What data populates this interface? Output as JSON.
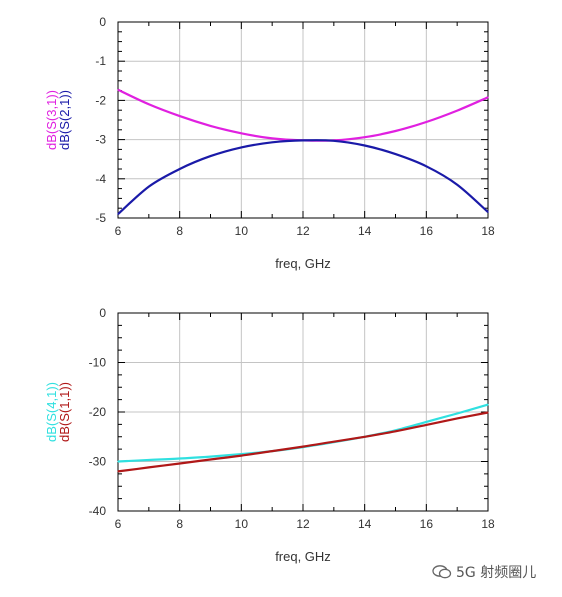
{
  "chart_data": [
    {
      "type": "line",
      "xlabel": "freq, GHz",
      "ylabel_lines": [
        "dB(S(3,1))",
        "dB(S(2,1))"
      ],
      "x": [
        6,
        7,
        8,
        9,
        10,
        11,
        12,
        13,
        14,
        15,
        16,
        17,
        18
      ],
      "xticks": [
        6,
        8,
        10,
        12,
        14,
        16,
        18
      ],
      "yticks": [
        0,
        -1,
        -2,
        -3,
        -4,
        -5
      ],
      "xlim": [
        6,
        18
      ],
      "ylim": [
        -5,
        0
      ],
      "grid": true,
      "series": [
        {
          "name": "dB(S(3,1))",
          "color": "#e020e0",
          "values": [
            -1.73,
            -2.1,
            -2.4,
            -2.65,
            -2.84,
            -2.97,
            -3.02,
            -3.02,
            -2.94,
            -2.78,
            -2.55,
            -2.26,
            -1.92
          ]
        },
        {
          "name": "dB(S(2,1))",
          "color": "#1a1aa8",
          "values": [
            -4.9,
            -4.2,
            -3.75,
            -3.42,
            -3.2,
            -3.07,
            -3.02,
            -3.03,
            -3.15,
            -3.37,
            -3.68,
            -4.15,
            -4.85
          ]
        }
      ]
    },
    {
      "type": "line",
      "xlabel": "freq, GHz",
      "ylabel_lines": [
        "dB(S(4,1))",
        "dB(S(1,1))"
      ],
      "x": [
        6,
        7,
        8,
        9,
        10,
        11,
        12,
        13,
        14,
        15,
        16,
        17,
        18
      ],
      "xticks": [
        6,
        8,
        10,
        12,
        14,
        16,
        18
      ],
      "yticks": [
        0,
        -10,
        -20,
        -30,
        -40
      ],
      "xlim": [
        6,
        18
      ],
      "ylim": [
        -40,
        0
      ],
      "grid": true,
      "series": [
        {
          "name": "dB(S(4,1))",
          "color": "#30e0e0",
          "values": [
            -30.0,
            -29.7,
            -29.4,
            -29.0,
            -28.5,
            -27.9,
            -27.1,
            -26.1,
            -25.0,
            -23.7,
            -22.0,
            -20.3,
            -18.5
          ]
        },
        {
          "name": "dB(S(1,1))",
          "color": "#b01818",
          "values": [
            -32.0,
            -31.2,
            -30.4,
            -29.6,
            -28.8,
            -27.9,
            -27.0,
            -26.0,
            -25.0,
            -23.9,
            -22.6,
            -21.3,
            -20.1
          ]
        }
      ]
    }
  ],
  "watermark": {
    "text": "5G 射频圈儿"
  }
}
